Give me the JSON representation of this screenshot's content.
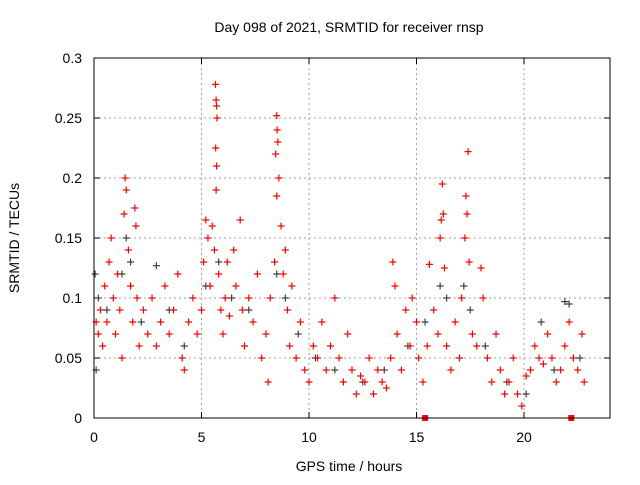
{
  "chart_data": {
    "type": "scatter",
    "title": "Day 098 of 2021, SRMTID for receiver rnsp",
    "xlabel": "GPS time / hours",
    "ylabel": "SRMTID / TECUs",
    "xlim": [
      0,
      24
    ],
    "ylim": [
      0,
      0.3
    ],
    "xticks": [
      0,
      5,
      10,
      15,
      20
    ],
    "xtick_labels": [
      "0",
      "5",
      "10",
      "15",
      "20"
    ],
    "yticks": [
      0,
      0.05,
      0.1,
      0.15,
      0.2,
      0.25,
      0.3
    ],
    "ytick_labels": [
      "0",
      "0.05",
      "0.1",
      "0.15",
      "0.2",
      "0.25",
      "0.3"
    ],
    "grid": true,
    "colors": {
      "primary": "#ff0000",
      "secondary": "#404040",
      "grid": "#a0a0a0"
    },
    "series": [
      {
        "name": "secondary",
        "marker": "plus",
        "color": "#404040",
        "points": [
          [
            0.05,
            0.12
          ],
          [
            0.1,
            0.04
          ],
          [
            0.2,
            0.1
          ],
          [
            0.6,
            0.09
          ],
          [
            1.3,
            0.12
          ],
          [
            1.5,
            0.15
          ],
          [
            1.7,
            0.13
          ],
          [
            2.2,
            0.08
          ],
          [
            2.9,
            0.127
          ],
          [
            3.5,
            0.09
          ],
          [
            4.2,
            0.06
          ],
          [
            5.2,
            0.11
          ],
          [
            5.8,
            0.13
          ],
          [
            6.4,
            0.1
          ],
          [
            7.2,
            0.09
          ],
          [
            8.5,
            0.12
          ],
          [
            8.9,
            0.1
          ],
          [
            9.5,
            0.07
          ],
          [
            10.3,
            0.05
          ],
          [
            11.2,
            0.04
          ],
          [
            12.5,
            0.03
          ],
          [
            13.5,
            0.04
          ],
          [
            14.6,
            0.06
          ],
          [
            15.4,
            0.08
          ],
          [
            16.1,
            0.11
          ],
          [
            16.4,
            0.1
          ],
          [
            17.2,
            0.11
          ],
          [
            17.5,
            0.09
          ],
          [
            18.2,
            0.06
          ],
          [
            19.2,
            0.03
          ],
          [
            20.1,
            0.02
          ],
          [
            20.8,
            0.08
          ],
          [
            21.4,
            0.04
          ],
          [
            21.9,
            0.097
          ],
          [
            22.1,
            0.095
          ],
          [
            22.6,
            0.05
          ]
        ]
      },
      {
        "name": "primary",
        "marker": "plus",
        "color": "#ff0000",
        "points": [
          [
            0.1,
            0.08
          ],
          [
            0.2,
            0.07
          ],
          [
            0.3,
            0.09
          ],
          [
            0.4,
            0.06
          ],
          [
            0.5,
            0.11
          ],
          [
            0.6,
            0.08
          ],
          [
            0.7,
            0.13
          ],
          [
            0.8,
            0.15
          ],
          [
            0.9,
            0.1
          ],
          [
            1.0,
            0.07
          ],
          [
            1.1,
            0.12
          ],
          [
            1.2,
            0.09
          ],
          [
            1.3,
            0.05
          ],
          [
            1.4,
            0.17
          ],
          [
            1.45,
            0.2
          ],
          [
            1.5,
            0.19
          ],
          [
            1.6,
            0.14
          ],
          [
            1.7,
            0.11
          ],
          [
            1.8,
            0.08
          ],
          [
            1.9,
            0.175
          ],
          [
            1.95,
            0.16
          ],
          [
            2.0,
            0.1
          ],
          [
            2.1,
            0.06
          ],
          [
            2.3,
            0.09
          ],
          [
            2.5,
            0.07
          ],
          [
            2.7,
            0.1
          ],
          [
            2.9,
            0.06
          ],
          [
            3.1,
            0.08
          ],
          [
            3.3,
            0.11
          ],
          [
            3.5,
            0.07
          ],
          [
            3.7,
            0.09
          ],
          [
            3.9,
            0.12
          ],
          [
            4.1,
            0.05
          ],
          [
            4.2,
            0.04
          ],
          [
            4.4,
            0.08
          ],
          [
            4.6,
            0.1
          ],
          [
            4.8,
            0.07
          ],
          [
            5.0,
            0.09
          ],
          [
            5.1,
            0.13
          ],
          [
            5.2,
            0.165
          ],
          [
            5.3,
            0.15
          ],
          [
            5.4,
            0.11
          ],
          [
            5.5,
            0.16
          ],
          [
            5.6,
            0.14
          ],
          [
            5.65,
            0.278
          ],
          [
            5.68,
            0.265
          ],
          [
            5.7,
            0.26
          ],
          [
            5.72,
            0.25
          ],
          [
            5.66,
            0.225
          ],
          [
            5.7,
            0.21
          ],
          [
            5.68,
            0.19
          ],
          [
            5.8,
            0.12
          ],
          [
            5.9,
            0.09
          ],
          [
            6.0,
            0.07
          ],
          [
            6.1,
            0.1
          ],
          [
            6.2,
            0.13
          ],
          [
            6.3,
            0.085
          ],
          [
            6.5,
            0.14
          ],
          [
            6.6,
            0.11
          ],
          [
            6.8,
            0.165
          ],
          [
            6.9,
            0.09
          ],
          [
            7.0,
            0.06
          ],
          [
            7.2,
            0.1
          ],
          [
            7.4,
            0.08
          ],
          [
            7.6,
            0.12
          ],
          [
            7.8,
            0.05
          ],
          [
            8.0,
            0.07
          ],
          [
            8.1,
            0.03
          ],
          [
            8.2,
            0.1
          ],
          [
            8.4,
            0.13
          ],
          [
            8.5,
            0.252
          ],
          [
            8.52,
            0.24
          ],
          [
            8.55,
            0.23
          ],
          [
            8.45,
            0.22
          ],
          [
            8.6,
            0.2
          ],
          [
            8.5,
            0.185
          ],
          [
            8.7,
            0.16
          ],
          [
            8.8,
            0.12
          ],
          [
            8.9,
            0.14
          ],
          [
            9.0,
            0.09
          ],
          [
            9.1,
            0.06
          ],
          [
            9.2,
            0.11
          ],
          [
            9.4,
            0.05
          ],
          [
            9.6,
            0.08
          ],
          [
            9.8,
            0.04
          ],
          [
            10.0,
            0.03
          ],
          [
            10.2,
            0.06
          ],
          [
            10.4,
            0.05
          ],
          [
            10.6,
            0.08
          ],
          [
            10.8,
            0.04
          ],
          [
            11.0,
            0.06
          ],
          [
            11.2,
            0.1
          ],
          [
            11.4,
            0.05
          ],
          [
            11.6,
            0.03
          ],
          [
            11.8,
            0.07
          ],
          [
            12.0,
            0.04
          ],
          [
            12.2,
            0.02
          ],
          [
            12.4,
            0.035
          ],
          [
            12.6,
            0.03
          ],
          [
            12.8,
            0.05
          ],
          [
            13.0,
            0.02
          ],
          [
            13.2,
            0.04
          ],
          [
            13.4,
            0.03
          ],
          [
            13.6,
            0.025
          ],
          [
            13.8,
            0.05
          ],
          [
            13.9,
            0.13
          ],
          [
            14.0,
            0.11
          ],
          [
            14.1,
            0.07
          ],
          [
            14.3,
            0.04
          ],
          [
            14.5,
            0.09
          ],
          [
            14.7,
            0.06
          ],
          [
            14.8,
            0.1
          ],
          [
            15.0,
            0.08
          ],
          [
            15.1,
            0.05
          ],
          [
            15.3,
            0.03
          ],
          [
            15.5,
            0.06
          ],
          [
            15.6,
            0.128
          ],
          [
            15.8,
            0.09
          ],
          [
            16.0,
            0.07
          ],
          [
            16.1,
            0.15
          ],
          [
            16.15,
            0.165
          ],
          [
            16.2,
            0.195
          ],
          [
            16.25,
            0.17
          ],
          [
            16.3,
            0.125
          ],
          [
            16.4,
            0.06
          ],
          [
            16.6,
            0.04
          ],
          [
            16.8,
            0.08
          ],
          [
            17.0,
            0.05
          ],
          [
            17.1,
            0.1
          ],
          [
            17.25,
            0.15
          ],
          [
            17.3,
            0.185
          ],
          [
            17.35,
            0.17
          ],
          [
            17.4,
            0.222
          ],
          [
            17.45,
            0.13
          ],
          [
            17.6,
            0.07
          ],
          [
            17.8,
            0.06
          ],
          [
            18.0,
            0.125
          ],
          [
            18.1,
            0.1
          ],
          [
            18.3,
            0.05
          ],
          [
            18.5,
            0.03
          ],
          [
            18.7,
            0.07
          ],
          [
            18.9,
            0.04
          ],
          [
            19.1,
            0.02
          ],
          [
            19.3,
            0.03
          ],
          [
            19.5,
            0.05
          ],
          [
            19.7,
            0.02
          ],
          [
            19.9,
            0.01
          ],
          [
            20.1,
            0.035
          ],
          [
            20.3,
            0.04
          ],
          [
            20.5,
            0.06
          ],
          [
            20.7,
            0.05
          ],
          [
            20.9,
            0.045
          ],
          [
            21.1,
            0.07
          ],
          [
            21.3,
            0.05
          ],
          [
            21.5,
            0.03
          ],
          [
            21.7,
            0.04
          ],
          [
            21.9,
            0.06
          ],
          [
            22.1,
            0.08
          ],
          [
            22.3,
            0.05
          ],
          [
            22.5,
            0.04
          ],
          [
            22.7,
            0.07
          ],
          [
            22.8,
            0.03
          ]
        ]
      }
    ],
    "markers_on_axis": {
      "color": "#ff0000",
      "x": [
        15.4,
        22.2
      ]
    }
  }
}
